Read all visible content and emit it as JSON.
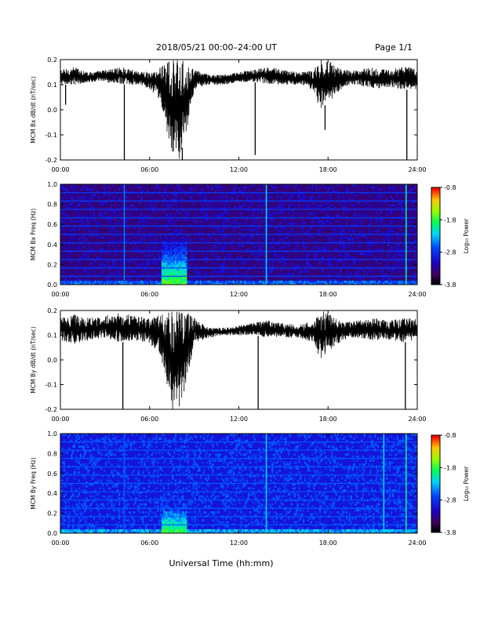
{
  "header": {
    "title": "2018/05/21   00:00–24:00 UT",
    "page_label": "Page 1/1"
  },
  "xaxis": {
    "label": "Universal Time (hh:mm)",
    "ticks": [
      0,
      6,
      12,
      18,
      24
    ],
    "tick_labels": [
      "00:00",
      "06:00",
      "12:00",
      "18:00",
      "24:00"
    ],
    "range": [
      0,
      24
    ],
    "unit": "hours UT"
  },
  "colorbar": {
    "label": "Log₁₀ Power",
    "range": [
      -3.8,
      -0.8
    ],
    "ticks": [
      -0.8,
      -1.8,
      -2.8,
      -3.8
    ],
    "tick_labels": [
      "-0.8",
      "-1.8",
      "-2.8",
      "-3.8"
    ]
  },
  "chart_data": [
    {
      "type": "line",
      "panel": "Bx dB/dt",
      "ylabel": "MCM Bx dB/dt (nT/sec)",
      "ylim": [
        -0.2,
        0.2
      ],
      "yticks": [
        -0.2,
        -0.1,
        0.0,
        0.1,
        0.2
      ],
      "ytick_labels": [
        "-0.2",
        "-0.1",
        "0.0",
        "0.1",
        "0.2"
      ],
      "color": "#000000",
      "envelope": {
        "x": [
          0,
          1,
          2,
          3,
          4,
          5,
          6,
          6.5,
          7,
          7.5,
          8,
          8.5,
          9,
          10,
          11,
          12,
          13,
          14,
          15,
          16,
          17,
          17.5,
          18,
          18.5,
          19,
          20,
          21,
          22,
          23,
          24
        ],
        "upper": [
          0.16,
          0.17,
          0.15,
          0.16,
          0.17,
          0.16,
          0.15,
          0.16,
          0.2,
          0.2,
          0.2,
          0.19,
          0.16,
          0.14,
          0.14,
          0.15,
          0.16,
          0.17,
          0.16,
          0.15,
          0.16,
          0.2,
          0.2,
          0.18,
          0.16,
          0.16,
          0.17,
          0.16,
          0.17,
          0.17
        ],
        "lower": [
          0.1,
          0.1,
          0.11,
          0.11,
          0.1,
          0.1,
          0.08,
          0.05,
          -0.03,
          -0.2,
          -0.2,
          -0.08,
          0.08,
          0.1,
          0.1,
          0.11,
          0.11,
          0.1,
          0.1,
          0.1,
          0.07,
          0.0,
          0.03,
          0.05,
          0.09,
          0.1,
          0.08,
          0.09,
          0.08,
          0.08
        ]
      },
      "spikes": [
        {
          "x": 0.35,
          "y": 0.02
        },
        {
          "x": 4.3,
          "y": -0.2
        },
        {
          "x": 8.2,
          "y": -0.2
        },
        {
          "x": 13.1,
          "y": -0.18
        },
        {
          "x": 17.8,
          "y": -0.08
        },
        {
          "x": 23.3,
          "y": -0.2
        }
      ]
    },
    {
      "type": "heatmap",
      "panel": "Bx spectrogram",
      "ylabel": "MCM Bx Freq (Hz)",
      "ylim": [
        0.0,
        1.0
      ],
      "yticks": [
        0.0,
        0.2,
        0.4,
        0.6,
        0.8,
        1.0
      ],
      "ytick_labels": [
        "0.0",
        "0.2",
        "0.4",
        "0.6",
        "0.8",
        "1.0"
      ],
      "zlim": [
        -3.8,
        -0.8
      ],
      "background_level": -3.4,
      "harmonic_lines_hz": [
        0.083,
        0.166,
        0.25,
        0.333,
        0.416,
        0.5,
        0.583,
        0.666,
        0.75,
        0.833,
        0.916
      ],
      "harmonic_level": -2.7,
      "low_freq_band": {
        "fmax": 0.05,
        "level": -2.6
      },
      "event": {
        "t_start": 6.8,
        "t_end": 8.5,
        "fmax": 0.45,
        "peak_level": -1.4
      },
      "spike_columns": [
        {
          "x": 4.3,
          "level": -2.5
        },
        {
          "x": 13.85,
          "level": -2.2
        },
        {
          "x": 23.25,
          "level": -2.0
        }
      ]
    },
    {
      "type": "line",
      "panel": "By dB/dt",
      "ylabel": "MCM By dB/dt (nT/sec)",
      "ylim": [
        -0.2,
        0.2
      ],
      "yticks": [
        -0.2,
        -0.1,
        0.0,
        0.1,
        0.2
      ],
      "ytick_labels": [
        "-0.2",
        "-0.1",
        "0.0",
        "0.1",
        "0.2"
      ],
      "color": "#000000",
      "envelope": {
        "x": [
          0,
          1,
          2,
          3,
          4,
          5,
          6,
          6.5,
          7,
          7.5,
          8,
          8.5,
          9,
          10,
          11,
          12,
          13,
          14,
          15,
          16,
          17,
          17.5,
          18,
          18.5,
          19,
          20,
          21,
          22,
          23,
          24
        ],
        "upper": [
          0.17,
          0.19,
          0.17,
          0.18,
          0.19,
          0.18,
          0.17,
          0.18,
          0.2,
          0.2,
          0.2,
          0.2,
          0.17,
          0.13,
          0.13,
          0.14,
          0.15,
          0.16,
          0.15,
          0.14,
          0.16,
          0.2,
          0.19,
          0.17,
          0.15,
          0.16,
          0.17,
          0.16,
          0.17,
          0.17
        ],
        "lower": [
          0.08,
          0.06,
          0.08,
          0.09,
          0.07,
          0.08,
          0.06,
          0.04,
          -0.05,
          -0.2,
          -0.2,
          -0.1,
          0.07,
          0.09,
          0.1,
          0.1,
          0.1,
          0.09,
          0.09,
          0.09,
          0.07,
          0.0,
          0.03,
          0.06,
          0.08,
          0.09,
          0.08,
          0.08,
          0.07,
          0.08
        ]
      },
      "spikes": [
        {
          "x": 4.2,
          "y": -0.2
        },
        {
          "x": 13.3,
          "y": -0.2
        },
        {
          "x": 23.2,
          "y": -0.2
        }
      ]
    },
    {
      "type": "heatmap",
      "panel": "By spectrogram",
      "ylabel": "MCM By Freq (Hz)",
      "ylim": [
        0.0,
        1.0
      ],
      "yticks": [
        0.0,
        0.2,
        0.4,
        0.6,
        0.8,
        1.0
      ],
      "ytick_labels": [
        "0.0",
        "0.2",
        "0.4",
        "0.6",
        "0.8",
        "1.0"
      ],
      "zlim": [
        -3.8,
        -0.8
      ],
      "background_level": -3.0,
      "harmonic_lines_hz": [
        0.083,
        0.166,
        0.25,
        0.333,
        0.416,
        0.5,
        0.583,
        0.666,
        0.75,
        0.833,
        0.916
      ],
      "harmonic_level": -2.6,
      "low_freq_band": {
        "fmax": 0.05,
        "level": -2.4
      },
      "event": {
        "t_start": 6.8,
        "t_end": 8.5,
        "fmax": 0.4,
        "peak_level": -1.5
      },
      "spike_columns": [
        {
          "x": 4.3,
          "level": -2.6
        },
        {
          "x": 13.85,
          "level": -2.2
        },
        {
          "x": 21.75,
          "level": -2.2
        },
        {
          "x": 23.25,
          "level": -2.0
        }
      ]
    }
  ]
}
